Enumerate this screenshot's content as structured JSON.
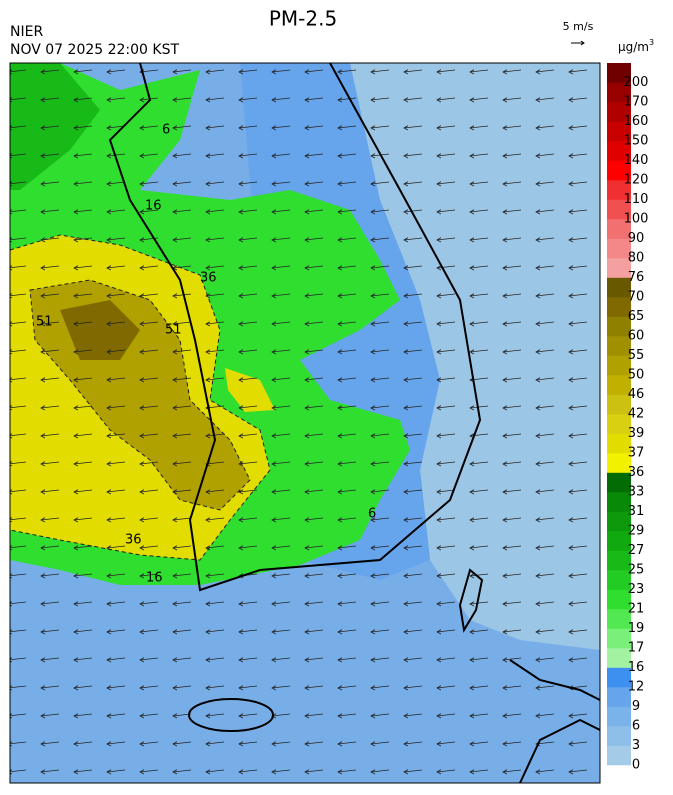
{
  "title": "PM-2.5",
  "agency": "NIER",
  "timestamp": "NOV 07 2025 22:00 KST",
  "wind_scale": "5 m/s",
  "unit": {
    "base": "µg/m",
    "sup": "3"
  },
  "colorbar": {
    "labels": [
      "0",
      "3",
      "6",
      "9",
      "12",
      "16",
      "17",
      "19",
      "21",
      "23",
      "25",
      "27",
      "29",
      "31",
      "33",
      "36",
      "37",
      "39",
      "42",
      "46",
      "50",
      "55",
      "60",
      "65",
      "70",
      "76",
      "80",
      "90",
      "100",
      "110",
      "120",
      "140",
      "150",
      "160",
      "170",
      "200"
    ],
    "colors": [
      "#a4cbe8",
      "#8ebfe8",
      "#7ab2ea",
      "#66a4ec",
      "#3e90f0",
      "#a2f2a2",
      "#7af07a",
      "#52e852",
      "#30de30",
      "#22cc22",
      "#18ba18",
      "#10aa10",
      "#0c9a0c",
      "#088a08",
      "#046c04",
      "#f2f200",
      "#e2dc00",
      "#d8d010",
      "#ccc010",
      "#c0b000",
      "#b0a000",
      "#a09000",
      "#908000",
      "#806a00",
      "#685800",
      "#f4a0a0",
      "#f48888",
      "#f27070",
      "#f05050",
      "#f03030",
      "#ff0000",
      "#e00000",
      "#c80000",
      "#b00000",
      "#980000",
      "#700000"
    ]
  },
  "contour_labels": [
    "6",
    "16",
    "36",
    "51",
    "51",
    "36",
    "16",
    "6"
  ]
}
